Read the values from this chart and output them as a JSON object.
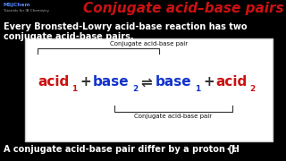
{
  "background_color": "#000000",
  "title": "Conjugate acid–base pairs",
  "title_color": "#cc1111",
  "title_fontsize": 11.0,
  "logo_text1": "MSJChem",
  "logo_text2": "Tutorials for IB Chemistry",
  "logo_color1": "#5588ff",
  "logo_color2": "#aaaaaa",
  "body_text1": "Every Bronsted-Lowry acid-base reaction has two",
  "body_text2": "conjugate acid-base pairs.",
  "body_color": "#ffffff",
  "body_fontsize": 7.0,
  "box_edge_color": "#cccccc",
  "box_face_color": "#ffffff",
  "label_top": "Conjugate acid-base pair",
  "label_bottom": "Conjugate acid-base pair",
  "label_fontsize": 5.0,
  "label_color": "#111111",
  "acid_color": "#cc1111",
  "base_color": "#1133cc",
  "eq_fontsize": 11.0,
  "sub_fontsize": 6.5,
  "footer_text": "A conjugate acid-base pair differ by a proton (H",
  "footer_super": "+",
  "footer_end": ").",
  "footer_color": "#ffffff",
  "footer_fontsize": 7.0
}
